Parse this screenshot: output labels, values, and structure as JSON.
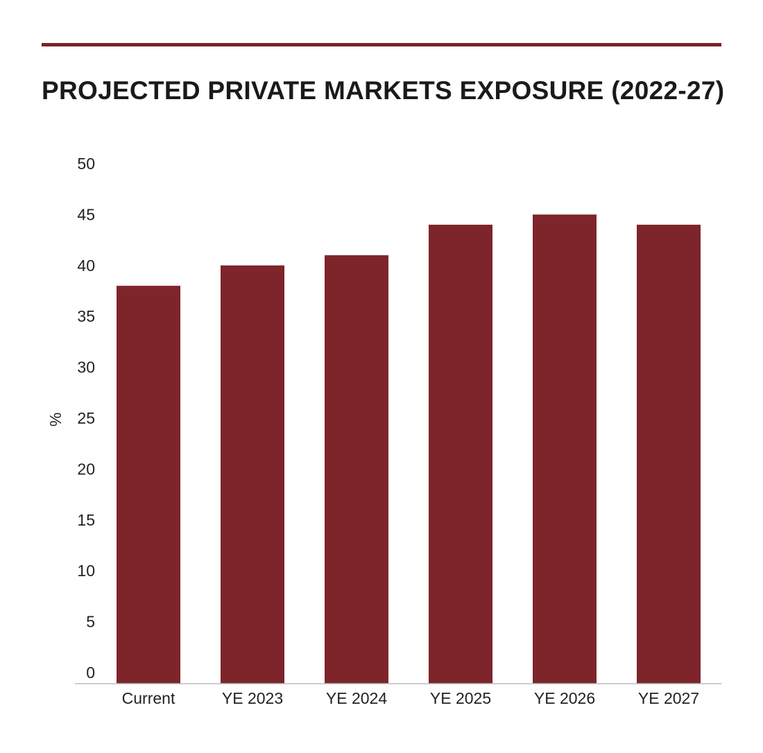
{
  "chart_data": {
    "type": "bar",
    "title": "PROJECTED PRIVATE MARKETS EXPOSURE (2022-27)",
    "xlabel": "",
    "ylabel": "%",
    "categories": [
      "Current",
      "YE 2023",
      "YE 2024",
      "YE 2025",
      "YE 2026",
      "YE 2027"
    ],
    "values": [
      38,
      40,
      41,
      44,
      45,
      44
    ],
    "ylim": [
      0,
      50
    ],
    "yticks": [
      0,
      5,
      10,
      15,
      20,
      25,
      30,
      35,
      40,
      45,
      50
    ],
    "grid": false,
    "legend": "none",
    "colors": {
      "bar": "#7d252a",
      "rule": "#7a2328",
      "axis": "#bbbbbb"
    }
  }
}
